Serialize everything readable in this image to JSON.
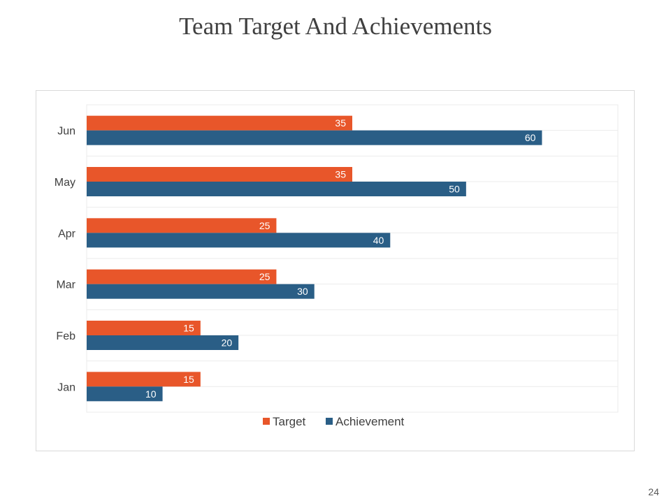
{
  "slide": {
    "title": "Team Target And Achievements",
    "page_number": "24"
  },
  "chart_data": {
    "type": "bar",
    "orientation": "horizontal",
    "title": "",
    "categories": [
      "Jan",
      "Feb",
      "Mar",
      "Apr",
      "May",
      "Jun"
    ],
    "series": [
      {
        "name": "Target",
        "values": [
          15,
          15,
          25,
          25,
          35,
          35
        ],
        "color": "#E8562A"
      },
      {
        "name": "Achievement",
        "values": [
          10,
          20,
          30,
          40,
          50,
          60
        ],
        "color": "#2A5E86"
      }
    ],
    "xlim": [
      0,
      70
    ],
    "data_labels": true,
    "grid": "horizontal",
    "legend": "bottom"
  }
}
